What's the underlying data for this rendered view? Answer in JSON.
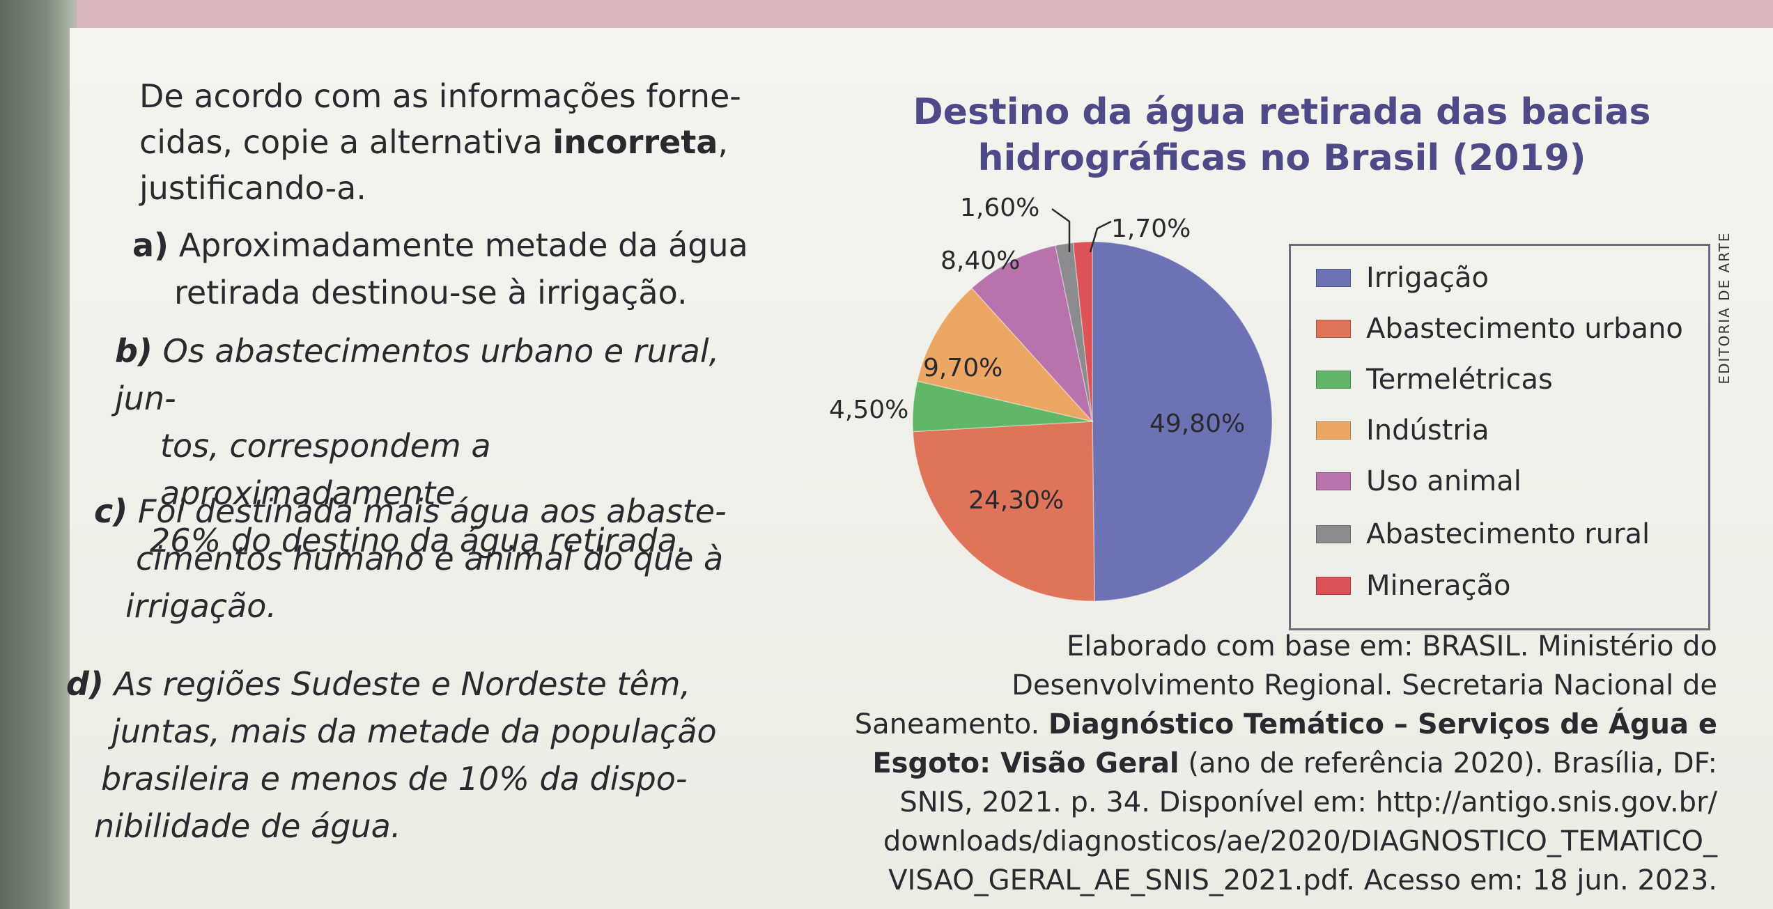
{
  "question": {
    "line1": "De acordo com as informações forne-",
    "line2_a": "cidas, copie a alternativa ",
    "line2_b": "incorreta",
    "line2_c": ",",
    "line3": "justificando-a."
  },
  "options": [
    {
      "letter": "a)",
      "lines": [
        "Aproximadamente metade da água",
        "retirada destinou-se à irrigação."
      ]
    },
    {
      "letter": "b)",
      "lines": [
        "Os abastecimentos urbano e rural, jun-",
        "tos, correspondem a aproximadamente",
        "26% do destino da água retirada."
      ]
    },
    {
      "letter": "c)",
      "lines": [
        "Foi destinada mais água aos abaste-",
        "cimentos humano e animal do que à",
        "irrigação."
      ]
    },
    {
      "letter": "d)",
      "lines": [
        "As regiões Sudeste e Nordeste têm,",
        "juntas, mais da metade da população",
        "brasileira e menos de 10% da dispo-",
        "nibilidade de água."
      ]
    }
  ],
  "chart_data": {
    "type": "pie",
    "title": "Destino da água retirada das bacias hidrográficas no Brasil (2019)",
    "title_line1": "Destino da água retirada das bacias",
    "title_line2": "hidrográficas no Brasil (2019)",
    "unit": "%",
    "legend_position": "right",
    "slices": [
      {
        "name": "Irrigação",
        "value": 49.8,
        "label": "49,80%",
        "color": "#6d72b4"
      },
      {
        "name": "Abastecimento urbano",
        "value": 24.3,
        "label": "24,30%",
        "color": "#e0745a"
      },
      {
        "name": "Termelétricas",
        "value": 4.5,
        "label": "4,50%",
        "color": "#5fb767"
      },
      {
        "name": "Indústria",
        "value": 9.7,
        "label": "9,70%",
        "color": "#eda765"
      },
      {
        "name": "Uso animal",
        "value": 8.4,
        "label": "8,40%",
        "color": "#b873ac"
      },
      {
        "name": "Abastecimento rural",
        "value": 1.6,
        "label": "1,60%",
        "color": "#8c8c8e"
      },
      {
        "name": "Mineração",
        "value": 1.7,
        "label": "1,70%",
        "color": "#dc5256"
      }
    ]
  },
  "credit": "EDITORIA DE ARTE",
  "source": {
    "line1": "Elaborado com base em: BRASIL. Ministério do",
    "line2": "Desenvolvimento Regional. Secretaria Nacional de",
    "line3_a": "Saneamento. ",
    "line3_b": "Diagnóstico Temático – Serviços de Água e",
    "line4_b": "Esgoto: Visão Geral",
    "line4_c": " (ano de referência 2020). Brasília, DF:",
    "line5": "SNIS, 2021. p. 34. Disponível em: http://antigo.snis.gov.br/",
    "line6": "downloads/diagnosticos/ae/2020/DIAGNOSTICO_TEMATICO_",
    "line7": "VISAO_GERAL_AE_SNIS_2021.pdf. Acesso em: 18 jun. 2023."
  }
}
